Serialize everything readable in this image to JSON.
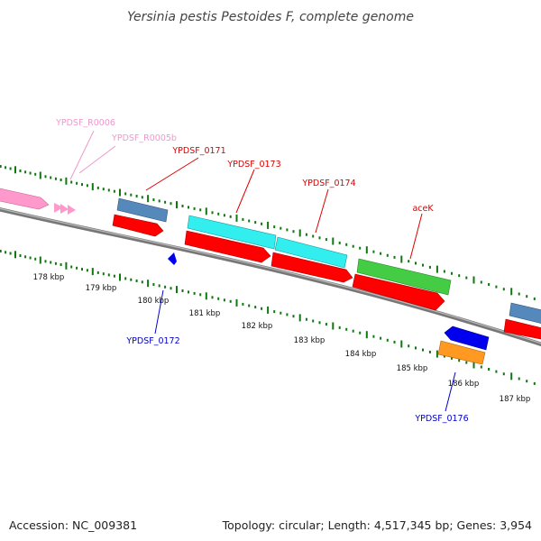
{
  "title": "Yersinia pestis Pestoides F, complete genome",
  "footer": {
    "accession": "Accession: NC_009381",
    "summary": "Topology: circular; Length: 4,517,345 bp; Genes: 3,954"
  },
  "kbp_labels": [
    "178 kbp",
    "179 kbp",
    "180 kbp",
    "181 kbp",
    "182 kbp",
    "183 kbp",
    "184 kbp",
    "185 kbp",
    "186 kbp",
    "187 kbp"
  ],
  "gene_labels": [
    {
      "text": "YPDSF_R0006",
      "strand": "forward",
      "color": "#ee99cc"
    },
    {
      "text": "YPDSF_R0005b",
      "strand": "forward",
      "color": "#ee99cc"
    },
    {
      "text": "YPDSF_0171",
      "strand": "forward",
      "color": "#dd0000"
    },
    {
      "text": "YPDSF_0173",
      "strand": "forward",
      "color": "#dd0000"
    },
    {
      "text": "YPDSF_0174",
      "strand": "forward",
      "color": "#dd0000"
    },
    {
      "text": "aceK",
      "strand": "forward",
      "color": "#dd0000"
    },
    {
      "text": "YPDSF_0172",
      "strand": "reverse",
      "color": "#0000cc"
    },
    {
      "text": "YPDSF_0176",
      "strand": "reverse",
      "color": "#0000cc"
    }
  ],
  "colors": {
    "backbone": "#888888",
    "tick": "#117711",
    "rrna": "#ff99cc",
    "cds": "#ff0000",
    "steelblue": "#5588bb",
    "cyan": "#33eeee",
    "green": "#44cc44",
    "blue": "#0000ee",
    "orange": "#ff9922"
  }
}
